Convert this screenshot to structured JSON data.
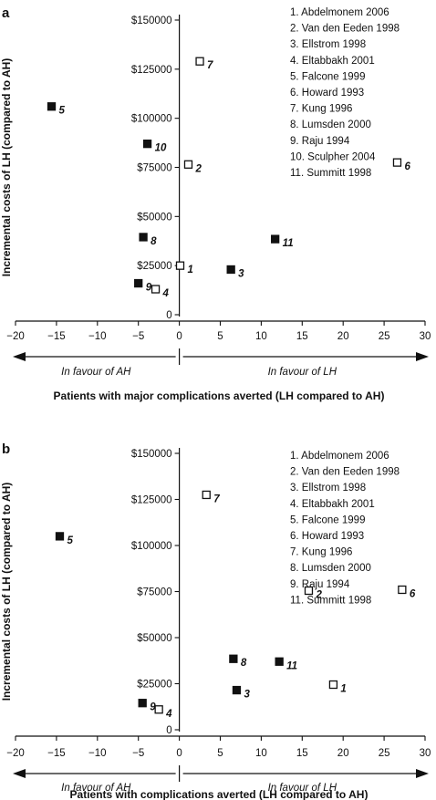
{
  "chart_data": [
    {
      "type": "scatter",
      "panel_label": "a",
      "xlabel": "Patients with major complications averted (LH compared to AH)",
      "ylabel": "Incremental costs of LH (compared to AH)",
      "xlim": [
        -20,
        30
      ],
      "ylim": [
        0,
        150000
      ],
      "x_ticks": [
        "−20",
        "−15",
        "−10",
        "−5",
        "0",
        "5",
        "10",
        "15",
        "20",
        "25",
        "30"
      ],
      "y_ticks": [
        "0",
        "$25000",
        "$50000",
        "$75000",
        "$100000",
        "$125000",
        "$150000"
      ],
      "direction_labels": {
        "left": "In favour of AH",
        "right": "In favour of LH"
      },
      "legend": [
        "1.  Abdelmonem 2006",
        "2.  Van den Eeden 1998",
        "3.  Ellstrom 1998",
        "4.  Eltabbakh 2001",
        "5.  Falcone 1999",
        "6.  Howard 1993",
        "7.  Kung 1996",
        "8.  Lumsden 2000",
        "9.  Raju 1994",
        "10. Sculpher 2004",
        "11. Summitt 1998"
      ],
      "points": [
        {
          "label": "1",
          "x": 0.1,
          "y": 25000,
          "filled": false
        },
        {
          "label": "2",
          "x": 1.1,
          "y": 76500,
          "filled": false
        },
        {
          "label": "3",
          "x": 6.3,
          "y": 23000,
          "filled": true
        },
        {
          "label": "4",
          "x": -2.9,
          "y": 13000,
          "filled": false
        },
        {
          "label": "5",
          "x": -15.6,
          "y": 106000,
          "filled": true
        },
        {
          "label": "6",
          "x": 26.6,
          "y": 77500,
          "filled": false
        },
        {
          "label": "7",
          "x": 2.5,
          "y": 129000,
          "filled": false
        },
        {
          "label": "8",
          "x": -4.4,
          "y": 39500,
          "filled": true
        },
        {
          "label": "9",
          "x": -5,
          "y": 16000,
          "filled": true
        },
        {
          "label": "10",
          "x": -3.9,
          "y": 87000,
          "filled": true
        },
        {
          "label": "11",
          "x": 11.7,
          "y": 38500,
          "filled": true
        }
      ]
    },
    {
      "type": "scatter",
      "panel_label": "b",
      "xlabel": "Patients with complications averted (LH compared to AH)",
      "ylabel": "Incremental costs of LH (compared to AH)",
      "xlim": [
        -20,
        30
      ],
      "ylim": [
        0,
        150000
      ],
      "x_ticks": [
        "−20",
        "−15",
        "−10",
        "−5",
        "0",
        "5",
        "10",
        "15",
        "20",
        "25",
        "30"
      ],
      "y_ticks": [
        "0",
        "$25000",
        "$50000",
        "$75000",
        "$100000",
        "$125000",
        "$150000"
      ],
      "direction_labels": {
        "left": "In favour of AH",
        "right": "In favour of LH"
      },
      "legend": [
        "1.  Abdelmonem 2006",
        "2.  Van den Eeden 1998",
        "3.  Ellstrom 1998",
        "4.  Eltabbakh 2001",
        "5.  Falcone 1999",
        "6.  Howard 1993",
        "7.  Kung 1996",
        "8.  Lumsden 2000",
        "9.  Raju 1994",
        "11. Summitt 1998"
      ],
      "points": [
        {
          "label": "1",
          "x": 18.8,
          "y": 24500,
          "filled": false
        },
        {
          "label": "2",
          "x": 15.8,
          "y": 75500,
          "filled": false
        },
        {
          "label": "3",
          "x": 7,
          "y": 21500,
          "filled": true
        },
        {
          "label": "4",
          "x": -2.5,
          "y": 11000,
          "filled": false
        },
        {
          "label": "5",
          "x": -14.6,
          "y": 105000,
          "filled": true
        },
        {
          "label": "6",
          "x": 27.2,
          "y": 76000,
          "filled": false
        },
        {
          "label": "7",
          "x": 3.3,
          "y": 127500,
          "filled": false
        },
        {
          "label": "8",
          "x": 6.6,
          "y": 38500,
          "filled": true
        },
        {
          "label": "9",
          "x": -4.5,
          "y": 14500,
          "filled": true
        },
        {
          "label": "11",
          "x": 12.2,
          "y": 37000,
          "filled": true
        }
      ]
    }
  ]
}
